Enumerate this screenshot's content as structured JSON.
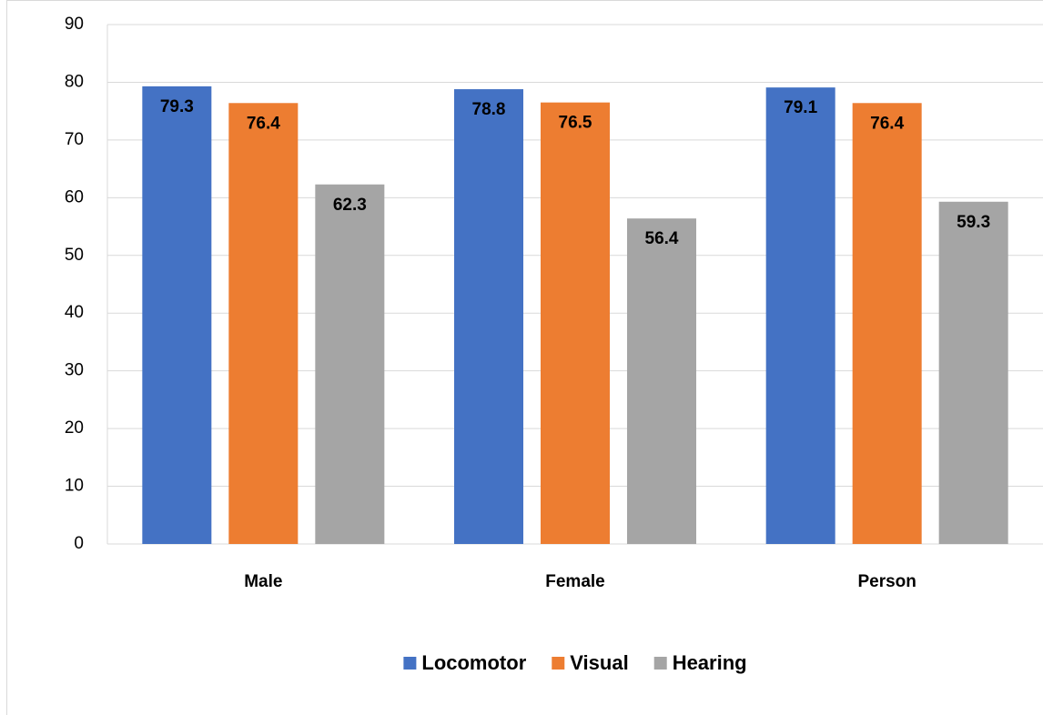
{
  "chart_data": {
    "type": "bar",
    "categories": [
      "Male",
      "Female",
      "Person"
    ],
    "series": [
      {
        "name": "Locomotor",
        "color": "#4472c4",
        "values": [
          79.3,
          78.8,
          79.1
        ]
      },
      {
        "name": "Visual",
        "color": "#ed7d31",
        "values": [
          76.4,
          76.5,
          76.4
        ]
      },
      {
        "name": "Hearing",
        "color": "#a5a5a5",
        "values": [
          62.3,
          56.4,
          59.3
        ]
      }
    ],
    "ylim": [
      0,
      90
    ],
    "yticks": [
      0,
      10,
      20,
      30,
      40,
      50,
      60,
      70,
      80,
      90
    ],
    "grid": true,
    "legend": "bottom"
  }
}
